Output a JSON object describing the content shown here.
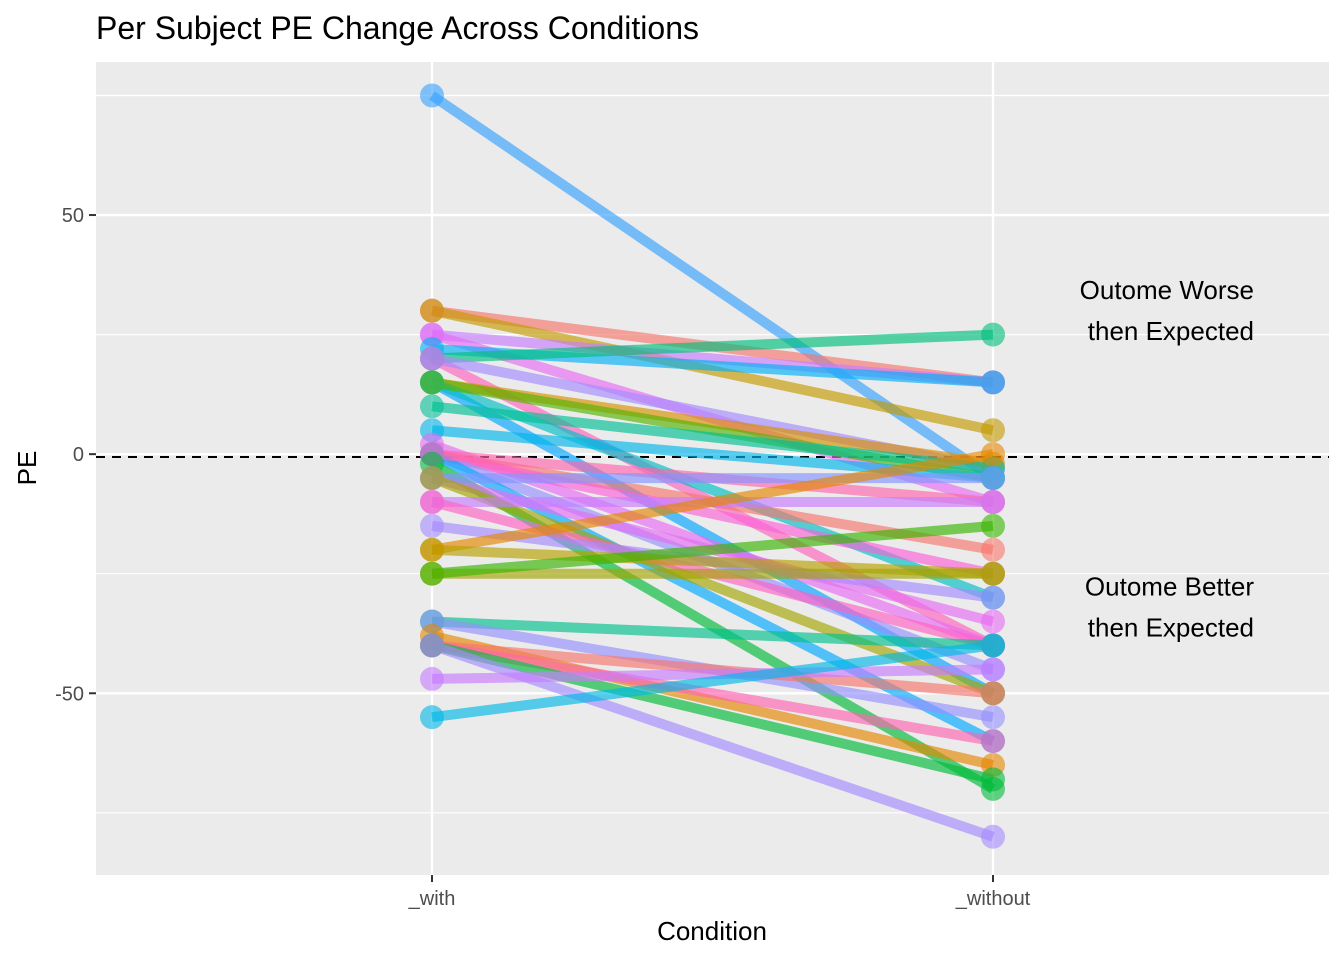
{
  "chart_data": {
    "type": "line",
    "title": "Per Subject PE Change Across Conditions",
    "xlabel": "Condition",
    "ylabel": "PE",
    "categories": [
      "_with",
      "_without"
    ],
    "ylim": [
      -88,
      82
    ],
    "y_ticks": [
      -50,
      0,
      50
    ],
    "y_tick_labels": [
      "-50",
      "0",
      "50"
    ],
    "grid": true,
    "legend": "none",
    "reference_line": {
      "y": 0,
      "style": "dashed"
    },
    "annotations": [
      {
        "lines": [
          "Outome Worse",
          "then Expected"
        ],
        "y": 30
      },
      {
        "lines": [
          "Outome Better",
          "then Expected"
        ],
        "y": -32
      }
    ],
    "series": [
      {
        "values": [
          75,
          -5
        ],
        "color": "#35A2FF"
      },
      {
        "values": [
          30,
          15
        ],
        "color": "#F8766D"
      },
      {
        "values": [
          30,
          5
        ],
        "color": "#C49A00"
      },
      {
        "values": [
          25,
          15
        ],
        "color": "#C77CFF"
      },
      {
        "values": [
          25,
          -10
        ],
        "color": "#E76BF3"
      },
      {
        "values": [
          22,
          15
        ],
        "color": "#00B0F6"
      },
      {
        "values": [
          20,
          25
        ],
        "color": "#00BF7D"
      },
      {
        "values": [
          20,
          -40
        ],
        "color": "#FF62BC"
      },
      {
        "values": [
          20,
          -3
        ],
        "color": "#A58AFF"
      },
      {
        "values": [
          15,
          -2
        ],
        "color": "#D89000"
      },
      {
        "values": [
          15,
          -50
        ],
        "color": "#00A5FF"
      },
      {
        "values": [
          15,
          -30
        ],
        "color": "#00BFC4"
      },
      {
        "values": [
          15,
          -5
        ],
        "color": "#53B400"
      },
      {
        "values": [
          10,
          -3
        ],
        "color": "#00C094"
      },
      {
        "values": [
          5,
          -5
        ],
        "color": "#00B6EB"
      },
      {
        "values": [
          2,
          -40
        ],
        "color": "#E76BF3"
      },
      {
        "values": [
          0,
          -20
        ],
        "color": "#F8766D"
      },
      {
        "values": [
          0,
          -25
        ],
        "color": "#FB61D7"
      },
      {
        "values": [
          0,
          -45
        ],
        "color": "#9590FF"
      },
      {
        "values": [
          0,
          -60
        ],
        "color": "#00A9FF"
      },
      {
        "values": [
          0,
          -10
        ],
        "color": "#FF65AC"
      },
      {
        "values": [
          -2,
          -70
        ],
        "color": "#00BA38"
      },
      {
        "values": [
          -5,
          -35
        ],
        "color": "#E76BF3"
      },
      {
        "values": [
          -5,
          -5
        ],
        "color": "#8494FF"
      },
      {
        "values": [
          -5,
          -50
        ],
        "color": "#A3A500"
      },
      {
        "values": [
          -10,
          -10
        ],
        "color": "#C77CFF"
      },
      {
        "values": [
          -10,
          -40
        ],
        "color": "#FF61C3"
      },
      {
        "values": [
          -15,
          -30
        ],
        "color": "#A58AFF"
      },
      {
        "values": [
          -20,
          0
        ],
        "color": "#E58700"
      },
      {
        "values": [
          -20,
          -25
        ],
        "color": "#B79F00"
      },
      {
        "values": [
          -25,
          -25
        ],
        "color": "#A3A500"
      },
      {
        "values": [
          -25,
          -15
        ],
        "color": "#39B600"
      },
      {
        "values": [
          -35,
          -40
        ],
        "color": "#00C08B"
      },
      {
        "values": [
          -35,
          -55
        ],
        "color": "#9590FF"
      },
      {
        "values": [
          -38,
          -65
        ],
        "color": "#E58700"
      },
      {
        "values": [
          -40,
          -50
        ],
        "color": "#F8766D"
      },
      {
        "values": [
          -40,
          -60
        ],
        "color": "#FF64B0"
      },
      {
        "values": [
          -40,
          -68
        ],
        "color": "#00BA38"
      },
      {
        "values": [
          -40,
          -80
        ],
        "color": "#A58AFF"
      },
      {
        "values": [
          -47,
          -45
        ],
        "color": "#C77CFF"
      },
      {
        "values": [
          -55,
          -40
        ],
        "color": "#00B8E7"
      }
    ]
  }
}
